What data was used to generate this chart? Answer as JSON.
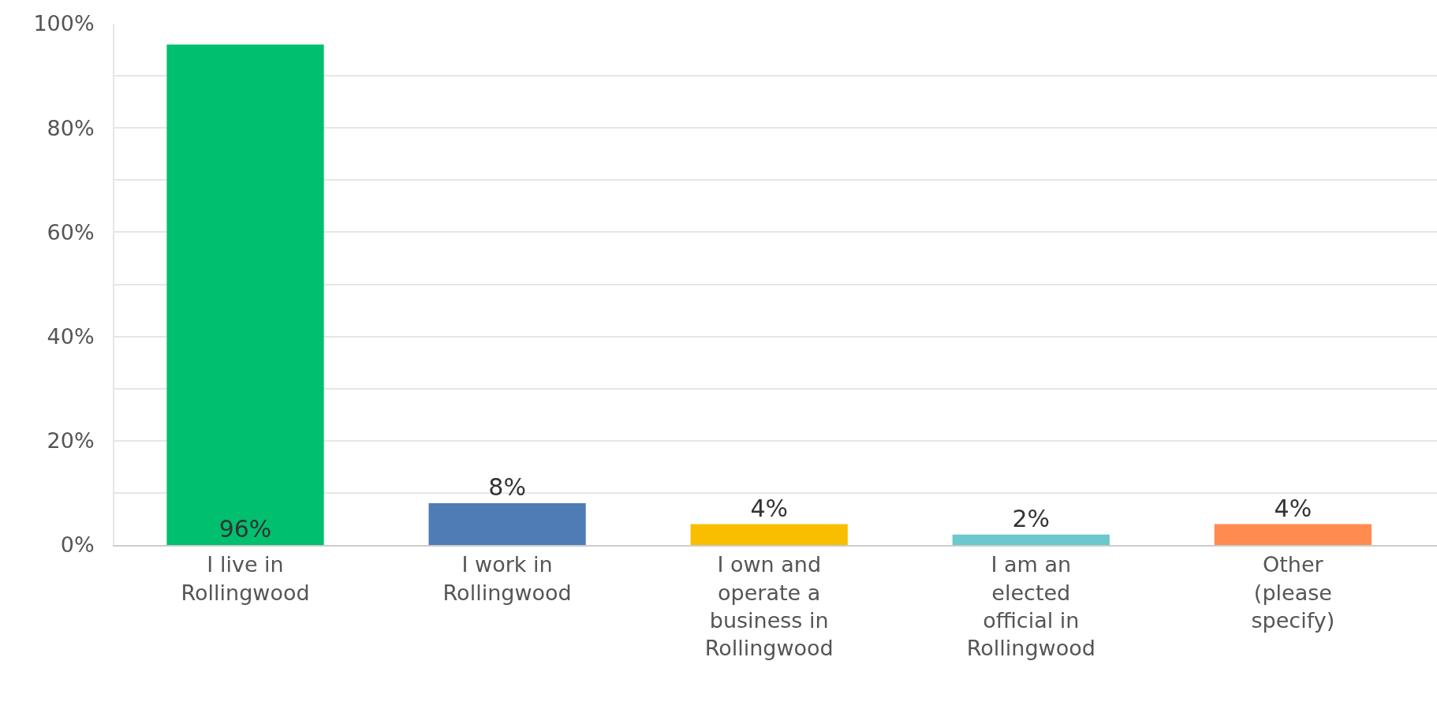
{
  "chart_data": {
    "type": "bar",
    "categories": [
      "I live in Rollingwood",
      "I work in Rollingwood",
      "I own and operate a business in Rollingwood",
      "I am an elected official in Rollingwood",
      "Other (please specify)"
    ],
    "values": [
      96,
      8,
      4,
      2,
      4
    ],
    "colors": [
      "#00bf6f",
      "#507cb6",
      "#f9be00",
      "#6bc8cd",
      "#ff8b4f"
    ],
    "ylim": [
      0,
      100
    ],
    "yticks": [
      {
        "value": 0,
        "label": "0%"
      },
      {
        "value": 10,
        "label": null
      },
      {
        "value": 20,
        "label": "20%"
      },
      {
        "value": 30,
        "label": null
      },
      {
        "value": 40,
        "label": "40%"
      },
      {
        "value": 50,
        "label": null
      },
      {
        "value": 60,
        "label": "60%"
      },
      {
        "value": 70,
        "label": null
      },
      {
        "value": 80,
        "label": "80%"
      },
      {
        "value": 90,
        "label": null
      },
      {
        "value": 100,
        "label": "100%"
      }
    ],
    "value_labels": [
      "96%",
      "8%",
      "4%",
      "2%",
      "4%"
    ],
    "grid": "y",
    "legend": false
  }
}
